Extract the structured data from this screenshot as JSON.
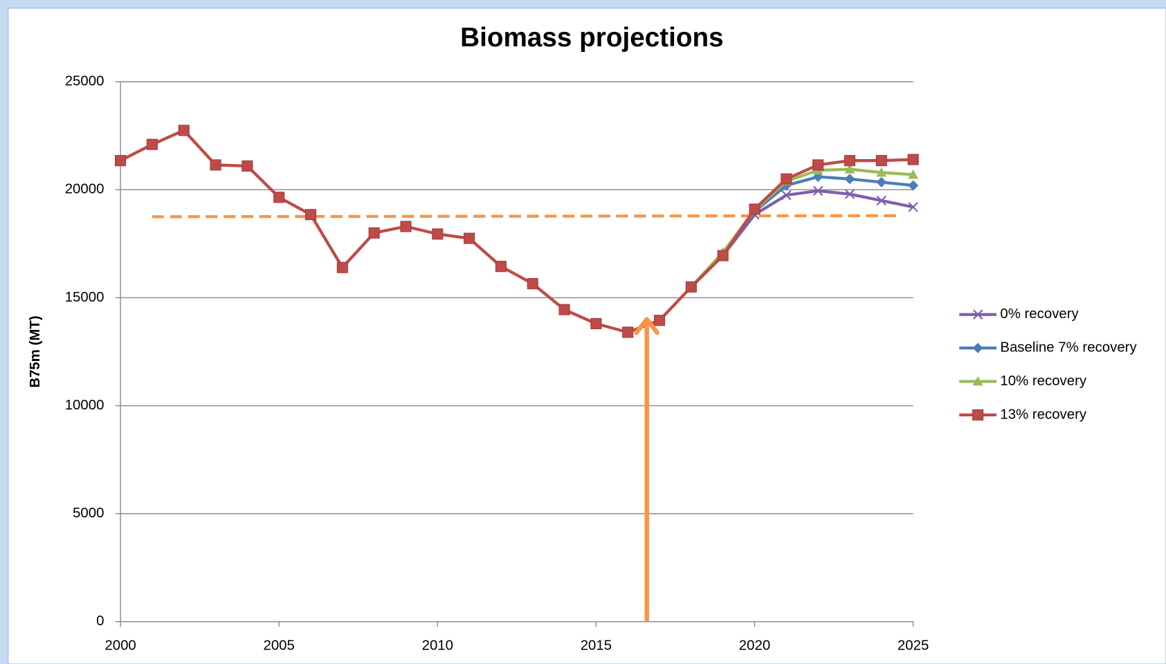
{
  "chart_data": {
    "type": "line",
    "title": "Biomass projections",
    "y_label": "B75m (MT)",
    "x": [
      2000,
      2001,
      2002,
      2003,
      2004,
      2005,
      2006,
      2007,
      2008,
      2009,
      2010,
      2011,
      2012,
      2013,
      2014,
      2015,
      2016,
      2017,
      2018,
      2019,
      2020,
      2021,
      2022,
      2023,
      2024,
      2025
    ],
    "series": [
      {
        "name": "0% recovery",
        "color": "#7f60a8",
        "marker": "x",
        "values": [
          null,
          null,
          null,
          null,
          null,
          null,
          null,
          null,
          null,
          null,
          null,
          null,
          null,
          null,
          null,
          null,
          null,
          null,
          15500,
          16950,
          18850,
          19750,
          19950,
          19800,
          19500,
          19200
        ]
      },
      {
        "name": "Baseline 7% recovery",
        "color": "#4a7ebb",
        "marker": "diamond",
        "values": [
          null,
          null,
          null,
          null,
          null,
          null,
          null,
          null,
          null,
          null,
          null,
          null,
          null,
          null,
          null,
          null,
          null,
          null,
          15500,
          17000,
          19000,
          20200,
          20600,
          20500,
          20350,
          20200
        ]
      },
      {
        "name": "10% recovery",
        "color": "#9bbb59",
        "marker": "triangle",
        "values": [
          null,
          null,
          null,
          null,
          null,
          null,
          null,
          null,
          null,
          null,
          null,
          null,
          null,
          null,
          null,
          null,
          null,
          null,
          15500,
          17100,
          19050,
          20400,
          20900,
          20950,
          20800,
          20700
        ]
      },
      {
        "name": "13% recovery",
        "color": "#be4b48",
        "marker": "square",
        "values": [
          21350,
          22100,
          22750,
          21150,
          21100,
          19650,
          18850,
          16400,
          18000,
          18300,
          17950,
          17750,
          16450,
          15650,
          14450,
          13800,
          13400,
          13950,
          15500,
          16950,
          19100,
          20500,
          21150,
          21350,
          21350,
          21400
        ]
      }
    ],
    "reference_line": {
      "x": [
        2001,
        2024.5
      ],
      "values": [
        18750,
        18800
      ],
      "color": "#f79646"
    },
    "arrow": {
      "x": 2016.6,
      "values": [
        0,
        14000
      ],
      "color": "#f79646"
    },
    "xlim": [
      2000,
      2025
    ],
    "xticks": [
      2000,
      2005,
      2010,
      2015,
      2020,
      2025
    ],
    "ylim": [
      0,
      25000
    ],
    "yticks": [
      0,
      5000,
      10000,
      15000,
      20000,
      25000
    ],
    "grid": true,
    "legend": "right"
  }
}
